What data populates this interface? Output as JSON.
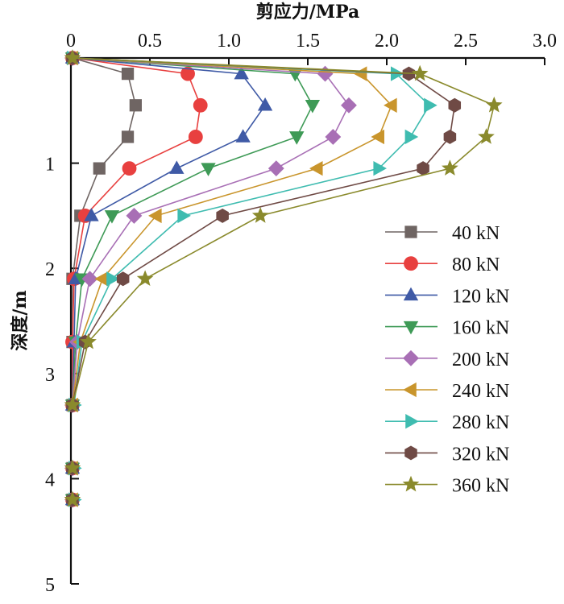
{
  "chart_data": {
    "type": "line",
    "title": "",
    "xlabel": "剪应力/MPa",
    "ylabel": "深度/m",
    "xlim": [
      0,
      3.0
    ],
    "ylim": [
      0,
      5
    ],
    "x_axis_position": "top",
    "y_axis_inverted": true,
    "x_ticks": [
      0,
      0.5,
      1.0,
      1.5,
      2.0,
      2.5,
      3.0
    ],
    "x_tick_labels": [
      "0",
      "0.5",
      "1.0",
      "1.5",
      "2.0",
      "2.5",
      "3.0"
    ],
    "y_ticks": [
      1,
      2,
      3,
      4,
      5
    ],
    "y_tick_labels": [
      "1",
      "2",
      "3",
      "4",
      "5"
    ],
    "grid": false,
    "legend_position": "right-middle",
    "depth": [
      0,
      0.15,
      0.45,
      0.75,
      1.05,
      1.5,
      2.1,
      2.7,
      3.3,
      3.9,
      4.2
    ],
    "series": [
      {
        "name": "40 kN",
        "color": "#6f6563",
        "marker": "square",
        "values": [
          0.01,
          0.36,
          0.41,
          0.36,
          0.18,
          0.06,
          0.01,
          0.01,
          0.01,
          0.01,
          0.01
        ]
      },
      {
        "name": "80 kN",
        "color": "#e8403f",
        "marker": "circle",
        "values": [
          0.01,
          0.74,
          0.82,
          0.79,
          0.37,
          0.09,
          0.02,
          0.01,
          0.01,
          0.01,
          0.01
        ]
      },
      {
        "name": "120 kN",
        "color": "#3f5aa6",
        "marker": "triangle-up",
        "values": [
          0.01,
          1.08,
          1.23,
          1.09,
          0.67,
          0.13,
          0.03,
          0.02,
          0.01,
          0.01,
          0.01
        ]
      },
      {
        "name": "160 kN",
        "color": "#3e9a56",
        "marker": "triangle-down",
        "values": [
          0.01,
          1.42,
          1.53,
          1.43,
          0.87,
          0.26,
          0.07,
          0.03,
          0.01,
          0.01,
          0.01
        ]
      },
      {
        "name": "200 kN",
        "color": "#a86fb5",
        "marker": "diamond",
        "values": [
          0.01,
          1.61,
          1.76,
          1.66,
          1.3,
          0.4,
          0.12,
          0.04,
          0.01,
          0.01,
          0.01
        ]
      },
      {
        "name": "240 kN",
        "color": "#c9952c",
        "marker": "triangle-left",
        "values": [
          0.01,
          1.84,
          2.03,
          1.95,
          1.56,
          0.54,
          0.2,
          0.06,
          0.01,
          0.01,
          0.01
        ]
      },
      {
        "name": "280 kN",
        "color": "#3fbcb0",
        "marker": "triangle-right",
        "values": [
          0.01,
          2.06,
          2.27,
          2.15,
          1.95,
          0.71,
          0.26,
          0.07,
          0.02,
          0.02,
          0.02
        ]
      },
      {
        "name": "320 kN",
        "color": "#6f4a45",
        "marker": "hexagon",
        "values": [
          0.01,
          2.14,
          2.43,
          2.4,
          2.23,
          0.96,
          0.33,
          0.09,
          0.01,
          0.01,
          0.01
        ]
      },
      {
        "name": "360 kN",
        "color": "#8a8a2c",
        "marker": "star",
        "values": [
          0.01,
          2.21,
          2.68,
          2.63,
          2.4,
          1.2,
          0.47,
          0.11,
          0.01,
          0.01,
          0.01
        ]
      }
    ]
  }
}
